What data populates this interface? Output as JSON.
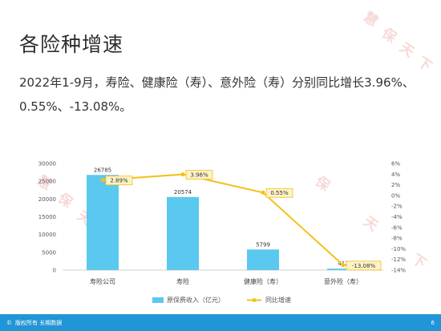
{
  "page": {
    "title": "各险种增速",
    "subtitle": "2022年1-9月，寿险、健康险（寿）、意外险（寿）分别同比增长3.96%、0.55%、-13.08%。",
    "watermark_chars": [
      "慧",
      "保",
      "天",
      "下"
    ],
    "footer_left": "版权所有 长期数据",
    "footer_page": "6"
  },
  "chart_data": {
    "type": "bar",
    "categories": [
      "寿险公司",
      "寿险",
      "健康险（寿）",
      "意外险（寿）"
    ],
    "series": [
      {
        "name": "原保费收入（亿元）",
        "type": "bar",
        "axis": "left",
        "values": [
          26785,
          20574,
          5799,
          412
        ],
        "labels": [
          "26785",
          "20574",
          "5799",
          "412"
        ],
        "color": "#5bc8f0"
      },
      {
        "name": "同比增速",
        "type": "line",
        "axis": "right",
        "values": [
          2.89,
          3.96,
          0.55,
          -13.08
        ],
        "labels": [
          "2.89%",
          "3.96%",
          "0.55%",
          "-13.08%"
        ],
        "color": "#f5c01a"
      }
    ],
    "y_left": {
      "min": 0,
      "max": 30000,
      "step": 5000,
      "ticks": [
        "0",
        "5000",
        "10000",
        "15000",
        "20000",
        "25000",
        "30000"
      ]
    },
    "y_right": {
      "min": -14,
      "max": 6,
      "step": 2,
      "ticks": [
        "6%",
        "4%",
        "2%",
        "0%",
        "-2%",
        "-4%",
        "-6%",
        "-8%",
        "-10%",
        "-12%",
        "-14%"
      ]
    },
    "grid": false,
    "legend_position": "bottom"
  }
}
